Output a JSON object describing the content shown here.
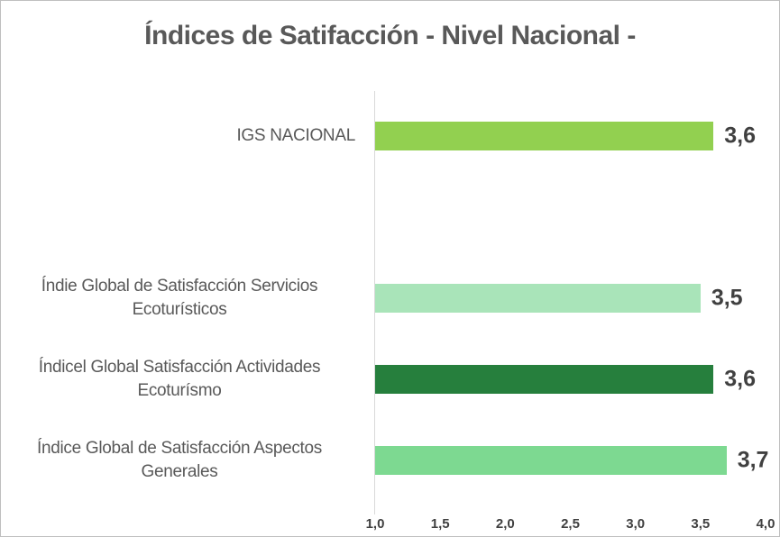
{
  "chart_data": {
    "type": "bar",
    "orientation": "horizontal",
    "title": "Índices de Satifacción - Nivel Nacional -",
    "categories": [
      "IGS NACIONAL",
      null,
      "Índie Global de Satisfacción Servicios Ecoturísticos",
      "Índicel Global Satisfacción Actividades Ecoturísmo",
      "Índice Global de Satisfacción Aspectos Generales"
    ],
    "values": [
      3.6,
      null,
      3.5,
      3.6,
      3.7
    ],
    "value_labels": [
      "3,6",
      null,
      "3,5",
      "3,6",
      "3,7"
    ],
    "colors": [
      "#92d050",
      null,
      "#a9e4b9",
      "#267f3d",
      "#7dd991"
    ],
    "xlim": [
      1,
      4
    ],
    "xticks": [
      {
        "value": 1,
        "label": "1,0"
      },
      {
        "value": 1.5,
        "label": "1,5"
      },
      {
        "value": 2,
        "label": "2,0"
      },
      {
        "value": 2.5,
        "label": "2,5"
      },
      {
        "value": 3,
        "label": "3,0"
      },
      {
        "value": 3.5,
        "label": "3,5"
      },
      {
        "value": 4,
        "label": "4,0"
      }
    ],
    "grid": false
  }
}
